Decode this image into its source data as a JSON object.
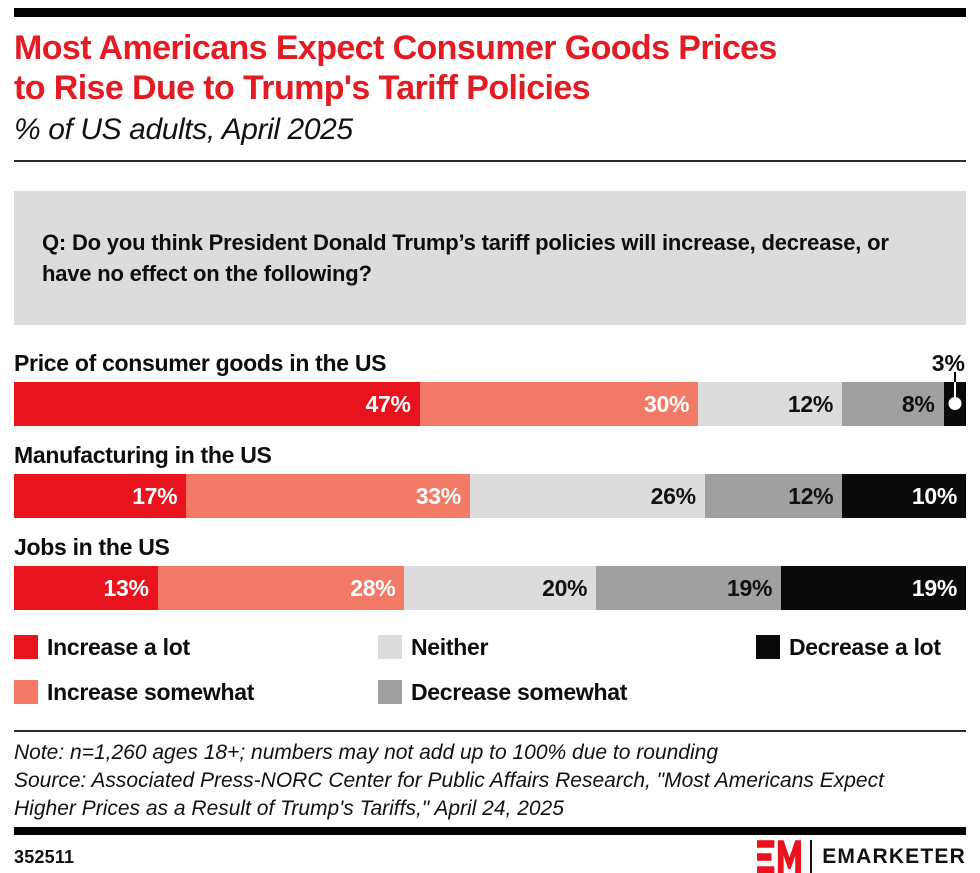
{
  "header": {
    "title": "Most Americans Expect Consumer Goods Prices to Rise Due to Trump's Tariff Policies",
    "title_lines": [
      "Most Americans Expect Consumer Goods Prices",
      "to Rise Due to Trump's Tariff Policies"
    ],
    "subtitle": "% of US adults, April 2025",
    "accent_color": "#e31b23"
  },
  "question": "Q: Do you think President Donald Trump’s tariff policies will increase, decrease, or have no effect on the following?",
  "chart_data": {
    "type": "bar",
    "variant": "horizontal-stacked",
    "unit": "%",
    "xlim": [
      0,
      100
    ],
    "grid": false,
    "legend_position": "bottom",
    "categories": [
      "Price of consumer goods in the US",
      "Manufacturing in the US",
      "Jobs in the US"
    ],
    "series": [
      {
        "name": "Increase a lot",
        "color": "#e8131c",
        "label_color": "#ffffff",
        "values": [
          47,
          17,
          13
        ]
      },
      {
        "name": "Increase somewhat",
        "color": "#f37a67",
        "label_color": "#ffffff",
        "values": [
          30,
          33,
          28
        ]
      },
      {
        "name": "Neither",
        "color": "#dcdcdc",
        "label_color": "#111111",
        "values": [
          12,
          26,
          20
        ]
      },
      {
        "name": "Decrease somewhat",
        "color": "#a0a0a0",
        "label_color": "#111111",
        "values": [
          8,
          12,
          19
        ]
      },
      {
        "name": "Decrease a lot",
        "color": "#0a0a0a",
        "label_color": "#ffffff",
        "values": [
          3,
          10,
          19
        ]
      }
    ],
    "callout": {
      "category_index": 0,
      "series_index": 4,
      "label": "3%"
    }
  },
  "notes": {
    "note": "Note: n=1,260 ages 18+; numbers may not add up to 100% due to rounding",
    "source": "Source: Associated Press-NORC Center for Public Affairs Research, \"Most Americans Expect Higher Prices as a Result of Trump's Tariffs,\" April 24, 2025"
  },
  "footer": {
    "chart_id": "352511",
    "brand": "EMARKETER",
    "brand_color": "#e8131c"
  }
}
